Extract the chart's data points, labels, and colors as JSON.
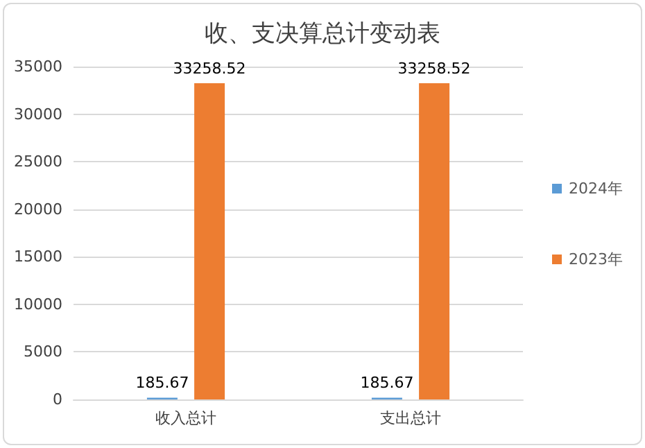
{
  "chart_data": {
    "type": "bar",
    "title": "收、支决算总计变动表",
    "categories": [
      "收入总计",
      "支出总计"
    ],
    "series": [
      {
        "name": "2024年",
        "color": "#5b9bd5",
        "values": [
          185.67,
          185.67
        ]
      },
      {
        "name": "2023年",
        "color": "#ed7d31",
        "values": [
          33258.52,
          33258.52
        ]
      }
    ],
    "ylim": [
      0,
      35000
    ],
    "yticks": [
      0,
      5000,
      10000,
      15000,
      20000,
      25000,
      30000,
      35000
    ],
    "grid": "y",
    "legend": "right",
    "data_labels": true
  }
}
